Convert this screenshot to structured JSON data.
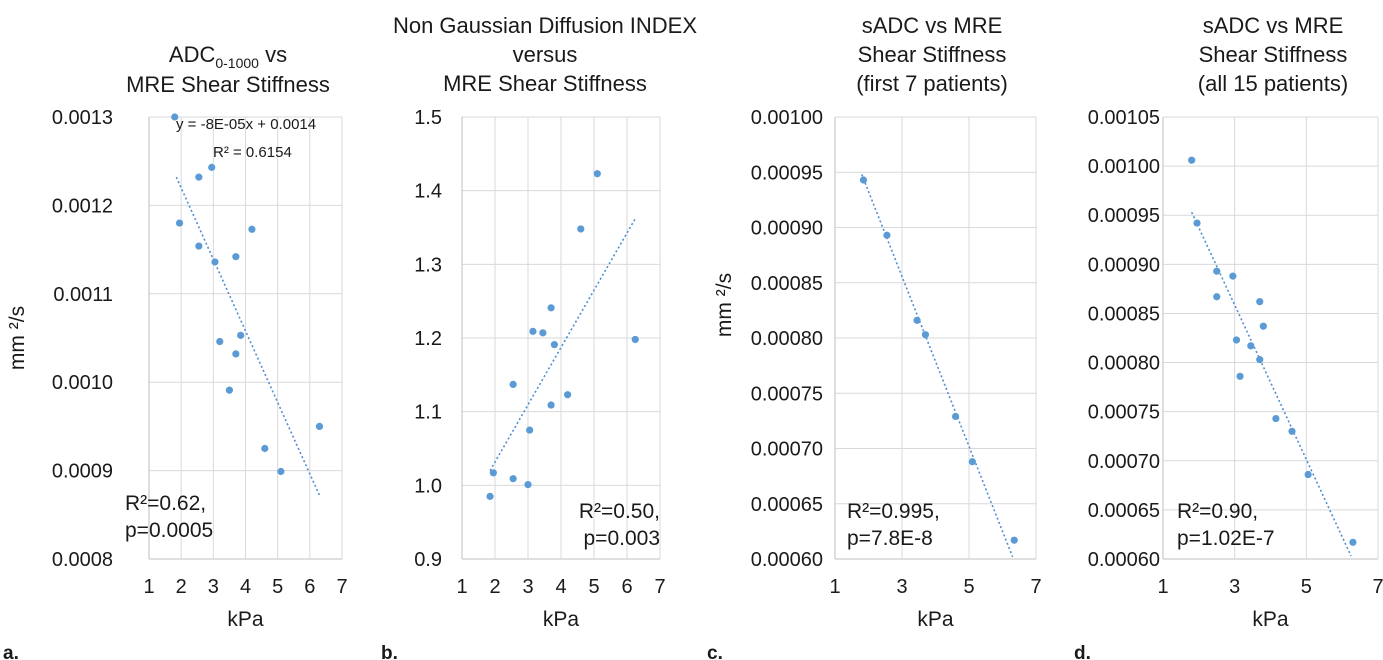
{
  "colors": {
    "point": "#5b9bd5",
    "trendline": "#4f8fd0",
    "grid": "#d9d9d9",
    "text": "#1a1a1a"
  },
  "chart_data": [
    {
      "type": "scatter",
      "panel_label": "a.",
      "title_lines": [
        "ADC0-1000 vs",
        "MRE Shear Stiffness"
      ],
      "title_main": "ADC",
      "title_subscript": "0-1000",
      "title_suffix": " vs",
      "xlabel": "kPa",
      "ylabel": "mm ²/s",
      "xlim": [
        1,
        7
      ],
      "ylim": [
        0.0008,
        0.0013
      ],
      "x_ticks": [
        "1",
        "2",
        "3",
        "4",
        "5",
        "6",
        "7"
      ],
      "y_ticks": [
        "0.0008",
        "0.0009",
        "0.0010",
        "0.0011",
        "0.0012",
        "0.0013"
      ],
      "grid": true,
      "equation": "y = -8E-05x + 0.0014",
      "r2_label": "R² = 0.6154",
      "annotation_lines": [
        "R²=0.62,",
        "p=0.0005"
      ],
      "trendline": [
        [
          1.85,
          0.001232
        ],
        [
          6.3,
          0.000872
        ]
      ],
      "points": [
        [
          1.8,
          0.0013
        ],
        [
          1.95,
          0.00118
        ],
        [
          2.55,
          0.001232
        ],
        [
          2.55,
          0.001154
        ],
        [
          2.95,
          0.001243
        ],
        [
          3.05,
          0.001136
        ],
        [
          3.2,
          0.001046
        ],
        [
          3.5,
          0.000991
        ],
        [
          3.7,
          0.001142
        ],
        [
          3.7,
          0.001032
        ],
        [
          3.85,
          0.001053
        ],
        [
          4.2,
          0.001173
        ],
        [
          4.6,
          0.000925
        ],
        [
          5.1,
          0.000899
        ],
        [
          6.3,
          0.00095
        ]
      ]
    },
    {
      "type": "scatter",
      "panel_label": "b.",
      "title_lines": [
        "Non Gaussian Diffusion INDEX",
        "versus",
        "MRE Shear Stiffness"
      ],
      "xlabel": "kPa",
      "ylabel": "",
      "xlim": [
        1,
        7
      ],
      "ylim": [
        0.9,
        1.5
      ],
      "x_ticks": [
        "1",
        "2",
        "3",
        "4",
        "5",
        "6",
        "7"
      ],
      "y_ticks": [
        "0.9",
        "1.0",
        "1.1",
        "1.2",
        "1.3",
        "1.4",
        "1.5"
      ],
      "grid": true,
      "annotation_lines": [
        "R²=0.50,",
        "p=0.003"
      ],
      "trendline": [
        [
          1.85,
          1.02
        ],
        [
          6.25,
          1.362
        ]
      ],
      "points": [
        [
          1.85,
          0.985
        ],
        [
          1.95,
          1.017
        ],
        [
          2.55,
          1.137
        ],
        [
          2.55,
          1.009
        ],
        [
          3.0,
          1.001
        ],
        [
          3.05,
          1.075
        ],
        [
          3.15,
          1.209
        ],
        [
          3.45,
          1.207
        ],
        [
          3.7,
          1.241
        ],
        [
          3.7,
          1.109
        ],
        [
          3.8,
          1.191
        ],
        [
          4.2,
          1.123
        ],
        [
          4.6,
          1.348
        ],
        [
          5.1,
          1.423
        ],
        [
          6.25,
          1.198
        ]
      ]
    },
    {
      "type": "scatter",
      "panel_label": "c.",
      "title_lines": [
        "sADC vs MRE",
        "Shear Stiffness",
        "(first 7 patients)"
      ],
      "xlabel": "kPa",
      "ylabel": "mm ²/s",
      "xlim": [
        1,
        7
      ],
      "ylim": [
        0.0006,
        0.001
      ],
      "x_ticks": [
        "1",
        "3",
        "5",
        "7"
      ],
      "y_ticks": [
        "0.00060",
        "0.00065",
        "0.00070",
        "0.00075",
        "0.00080",
        "0.00085",
        "0.00090",
        "0.00095",
        "0.00100"
      ],
      "grid": true,
      "annotation_lines": [
        "R²=0.995,",
        "p=7.8E-8"
      ],
      "trendline": [
        [
          1.8,
          0.000948
        ],
        [
          6.3,
          0.000602
        ]
      ],
      "points": [
        [
          1.85,
          0.000943
        ],
        [
          2.55,
          0.000893
        ],
        [
          3.45,
          0.000816
        ],
        [
          3.7,
          0.000803
        ],
        [
          4.6,
          0.000729
        ],
        [
          5.1,
          0.000688
        ],
        [
          6.35,
          0.000617
        ]
      ]
    },
    {
      "type": "scatter",
      "panel_label": "d.",
      "title_lines": [
        "sADC vs MRE",
        "Shear Stiffness",
        "(all 15 patients)"
      ],
      "xlabel": "kPa",
      "ylabel": "",
      "xlim": [
        1,
        7
      ],
      "ylim": [
        0.0006,
        0.00105
      ],
      "x_ticks": [
        "1",
        "3",
        "5",
        "7"
      ],
      "y_ticks": [
        "0.00060",
        "0.00065",
        "0.00070",
        "0.00075",
        "0.00080",
        "0.00085",
        "0.00090",
        "0.00095",
        "0.00100",
        "0.00105"
      ],
      "grid": true,
      "annotation_lines": [
        "R²=0.90,",
        "p=1.02E-7"
      ],
      "trendline": [
        [
          1.8,
          0.000953
        ],
        [
          6.25,
          0.000603
        ]
      ],
      "points": [
        [
          1.8,
          0.001006
        ],
        [
          1.95,
          0.000942
        ],
        [
          2.5,
          0.000893
        ],
        [
          2.5,
          0.000867
        ],
        [
          2.95,
          0.000888
        ],
        [
          3.05,
          0.000823
        ],
        [
          3.15,
          0.000786
        ],
        [
          3.45,
          0.000817
        ],
        [
          3.7,
          0.000862
        ],
        [
          3.7,
          0.000803
        ],
        [
          3.8,
          0.000837
        ],
        [
          4.15,
          0.000743
        ],
        [
          4.6,
          0.00073
        ],
        [
          5.05,
          0.000686
        ],
        [
          6.3,
          0.000617
        ]
      ]
    }
  ]
}
